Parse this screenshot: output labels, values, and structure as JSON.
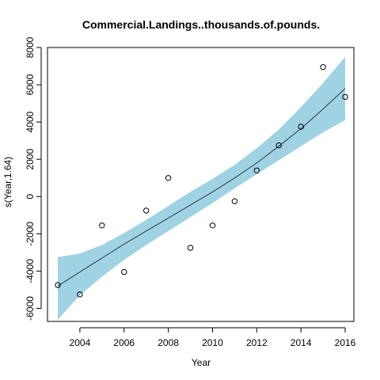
{
  "chart_data": {
    "type": "scatter",
    "title": "Commercial.Landings..thousands.of.pounds.",
    "xlabel": "Year",
    "ylabel": "s(Year,1.64)",
    "xlim": [
      2003,
      2016
    ],
    "ylim": [
      -6700,
      8000
    ],
    "x_ticks": [
      2004,
      2006,
      2008,
      2010,
      2012,
      2014,
      2016
    ],
    "y_ticks": [
      -6000,
      -4000,
      -2000,
      0,
      2000,
      4000,
      6000,
      8000
    ],
    "grid": false,
    "colors": {
      "band": "#9fd3e4",
      "line": "#2b3a42",
      "points": "#000000"
    },
    "points": {
      "x": [
        2003,
        2004,
        2005,
        2006,
        2007,
        2008,
        2009,
        2010,
        2011,
        2012,
        2013,
        2014,
        2015,
        2016
      ],
      "y": [
        -4750,
        -5250,
        -1550,
        -4050,
        -750,
        1000,
        -2750,
        -1550,
        -250,
        1400,
        2750,
        3750,
        6950,
        5350
      ]
    },
    "smooth": {
      "x": [
        2003,
        2004,
        2005,
        2006,
        2007,
        2008,
        2009,
        2010,
        2011,
        2012,
        2013,
        2014,
        2015,
        2016
      ],
      "fit": [
        -4800,
        -4050,
        -3300,
        -2550,
        -1850,
        -1150,
        -450,
        250,
        1000,
        1800,
        2700,
        3650,
        4700,
        5800
      ],
      "lower": [
        -6600,
        -5300,
        -4300,
        -3400,
        -2600,
        -1850,
        -1100,
        -350,
        450,
        1200,
        1950,
        2700,
        3450,
        4100
      ],
      "upper": [
        -3250,
        -3050,
        -2600,
        -1950,
        -1250,
        -500,
        250,
        950,
        1700,
        2600,
        3600,
        4800,
        6100,
        7500
      ]
    }
  }
}
